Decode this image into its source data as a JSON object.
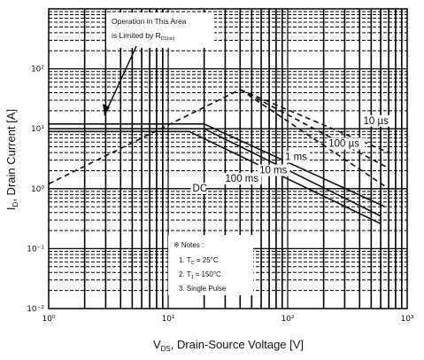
{
  "chart_data": {
    "type": "line",
    "xscale": "log",
    "yscale": "log",
    "xlim": [
      1,
      1000
    ],
    "ylim": [
      0.01,
      1000
    ],
    "xlabel": "V_DS, Drain-Source Voltage [V]",
    "ylabel": "I_D, Drain Current [A]",
    "x_ticks": [
      {
        "value": 1,
        "label": "10⁰"
      },
      {
        "value": 10,
        "label": "10¹"
      },
      {
        "value": 100,
        "label": "10²"
      },
      {
        "value": 1000,
        "label": "10³"
      }
    ],
    "y_ticks": [
      {
        "value": 0.01,
        "label": "10⁻²"
      },
      {
        "value": 0.1,
        "label": "10⁻¹"
      },
      {
        "value": 1,
        "label": "10⁰"
      },
      {
        "value": 10,
        "label": "10¹"
      },
      {
        "value": 100,
        "label": "10²"
      }
    ],
    "grid": true,
    "series": [
      {
        "name": "Operation limit R_DS(on)",
        "style": "dashed",
        "points": [
          [
            1,
            1.2
          ],
          [
            40,
            45
          ]
        ]
      },
      {
        "name": "10 µs",
        "style": "dashed",
        "points": [
          [
            40,
            45
          ],
          [
            700,
            4
          ]
        ]
      },
      {
        "name": "100 µs",
        "style": "dashed",
        "points": [
          [
            40,
            45
          ],
          [
            700,
            2.2
          ]
        ]
      },
      {
        "name": "1 ms",
        "style": "dashed",
        "points": [
          [
            40,
            45
          ],
          [
            700,
            1
          ]
        ]
      },
      {
        "name": "10 ms",
        "style": "solid",
        "points": [
          [
            1,
            12
          ],
          [
            20,
            12
          ],
          [
            650,
            0.5
          ]
        ]
      },
      {
        "name": "100 ms",
        "style": "solid",
        "points": [
          [
            1,
            10
          ],
          [
            20,
            10
          ],
          [
            600,
            0.35
          ]
        ]
      },
      {
        "name": "DC",
        "style": "solid",
        "points": [
          [
            1,
            9
          ],
          [
            15,
            9
          ],
          [
            600,
            0.26
          ]
        ]
      }
    ],
    "curve_labels": [
      {
        "text": "10 µs",
        "x": 430,
        "y": 12
      },
      {
        "text": "100 µs",
        "x": 220,
        "y": 5
      },
      {
        "text": "1 ms",
        "x": 95,
        "y": 3
      },
      {
        "text": "10 ms",
        "x": 58,
        "y": 1.8
      },
      {
        "text": "100 ms",
        "x": 30,
        "y": 1.3
      },
      {
        "text": "DC",
        "x": 16,
        "y": 0.9
      }
    ],
    "annotation": {
      "line1": "Operation in This Area",
      "line2": "is Limited by R",
      "subscript": "DS(on)"
    },
    "notes": {
      "title": "※ Notes :",
      "items": [
        "1. T_C = 25°C",
        "2. T_J = 150°C",
        "3. Single Pulse"
      ]
    }
  }
}
